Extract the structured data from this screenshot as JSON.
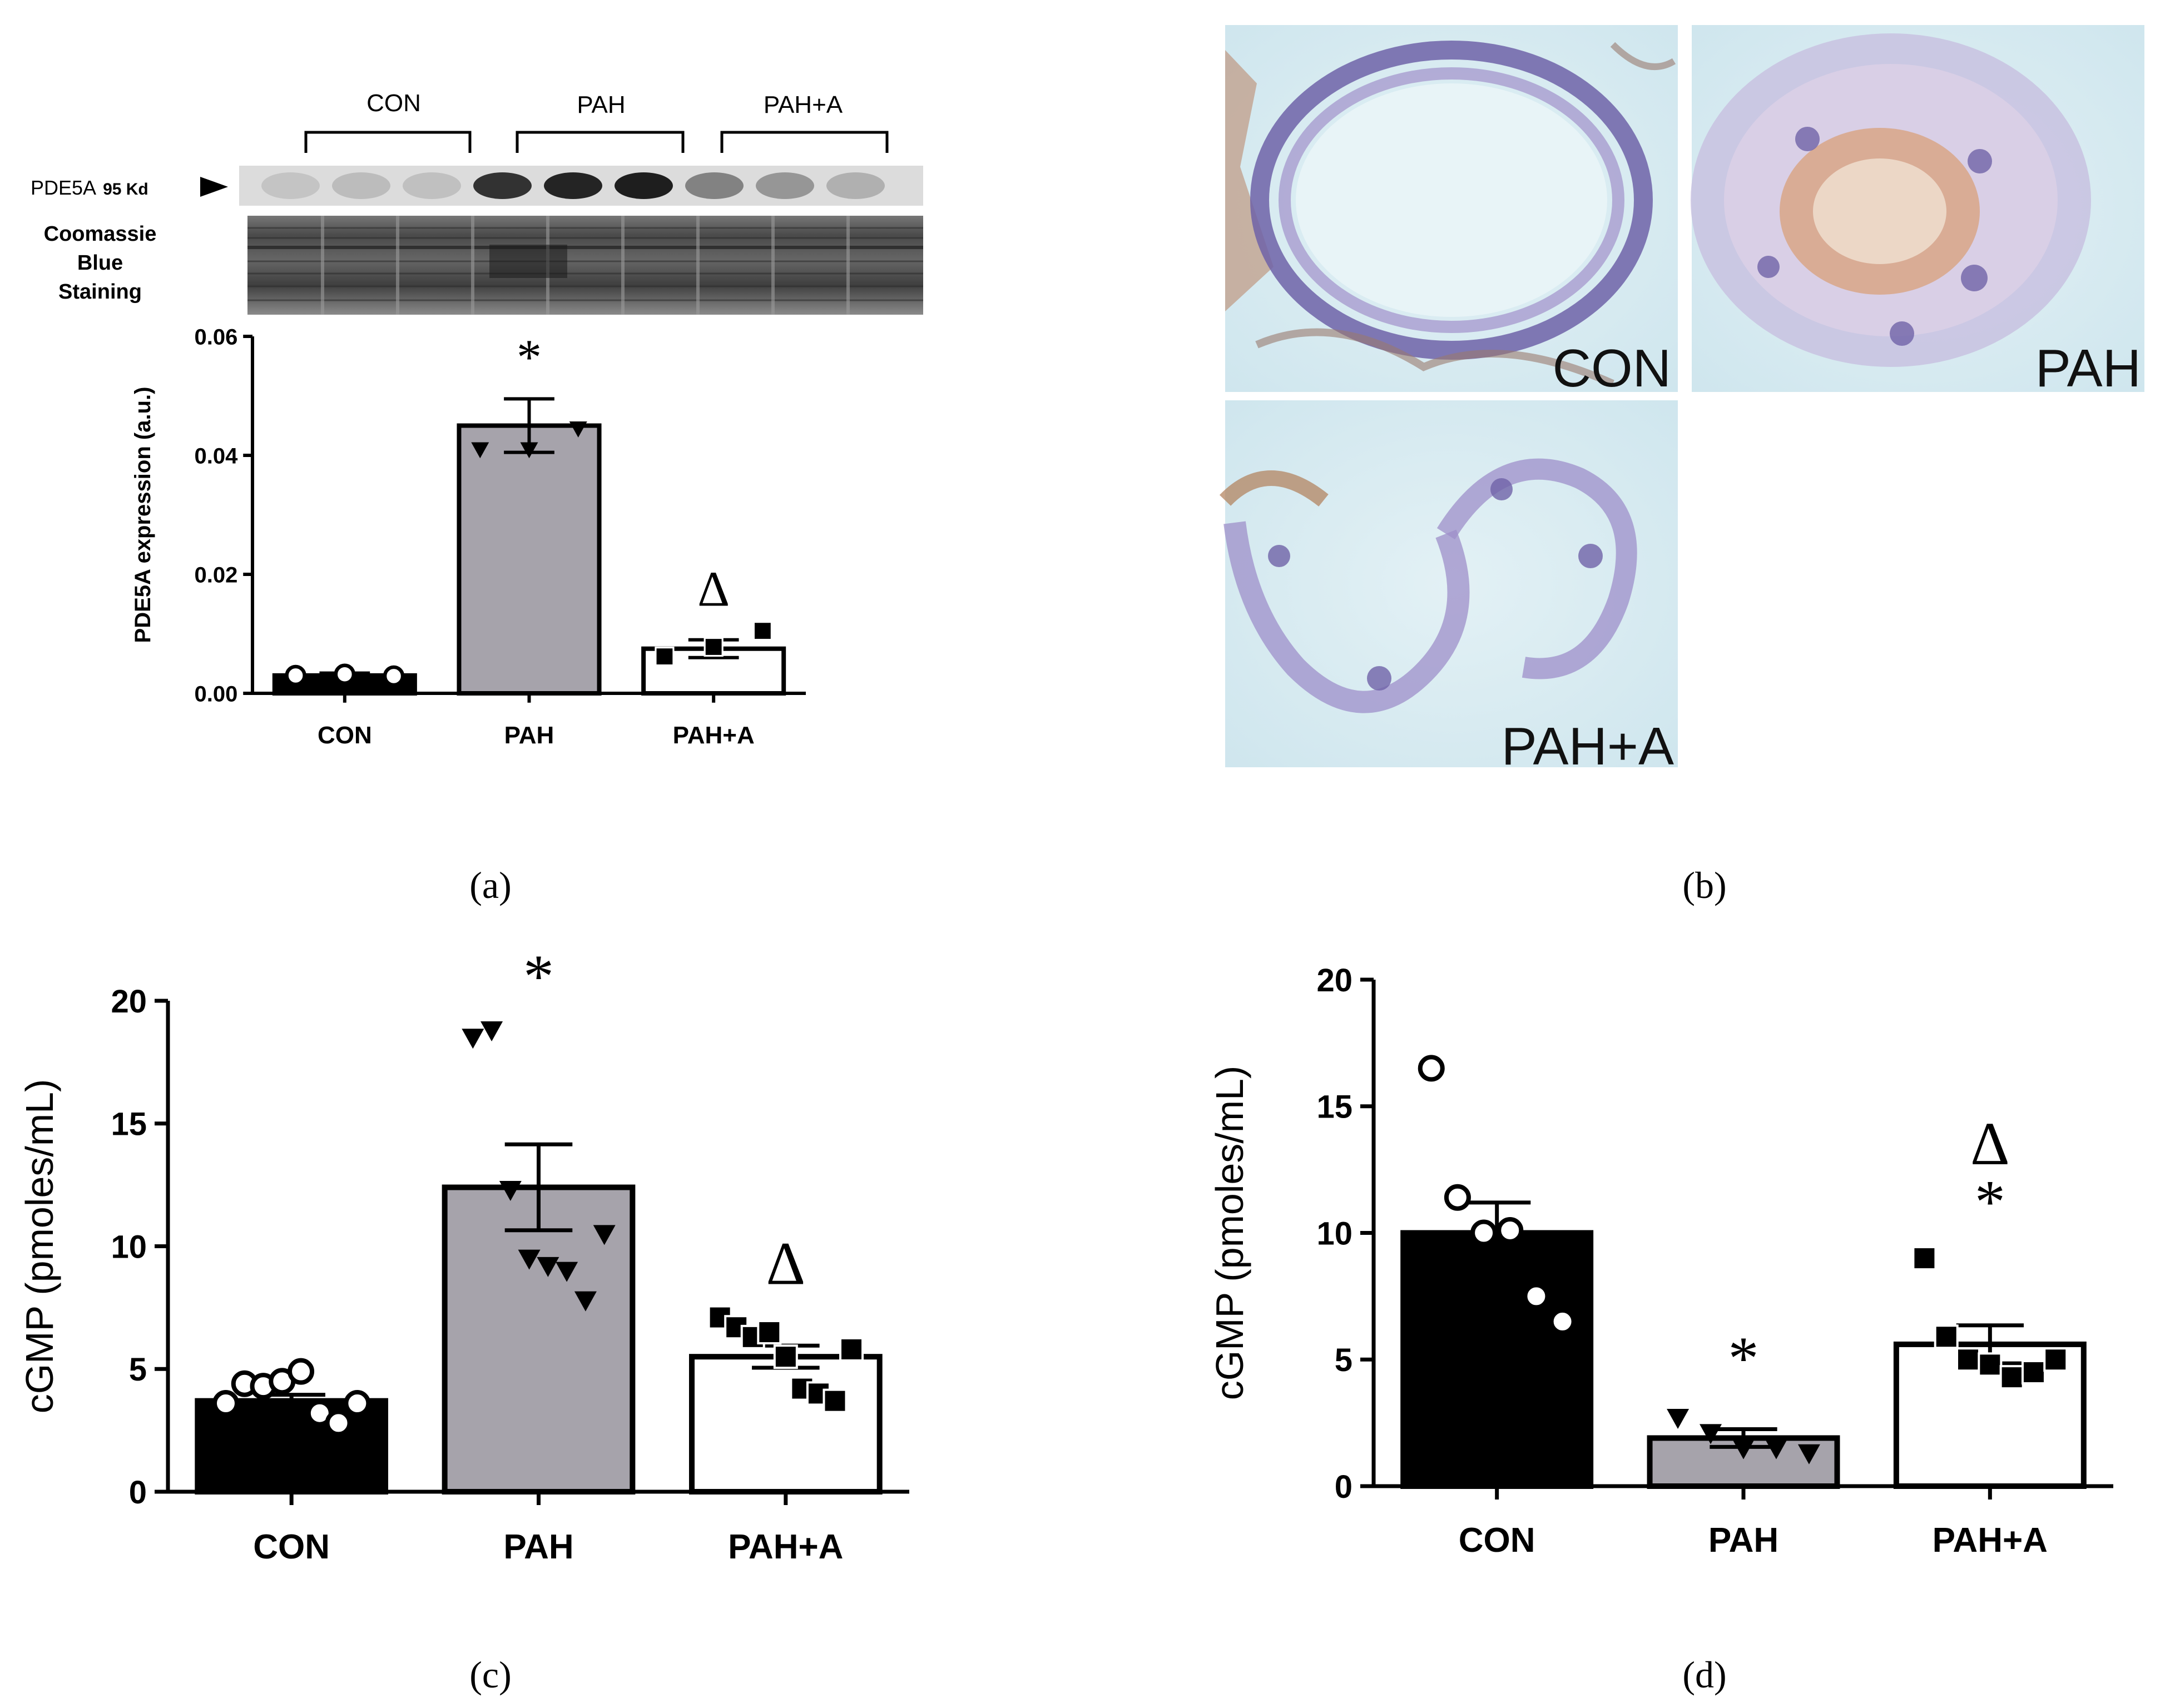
{
  "panel_labels": [
    "(a)",
    "(b)",
    "(c)",
    "(d)"
  ],
  "western_blot": {
    "group_labels": [
      "CON",
      "PAH",
      "PAH+A"
    ],
    "band_label": "PDE5A",
    "band_size": "95 Kd",
    "loading_label_lines": [
      "Coomassie",
      "Blue",
      "Staining"
    ],
    "band_intensity": [
      0.12,
      0.16,
      0.14,
      0.85,
      0.92,
      0.95,
      0.45,
      0.35,
      0.22
    ]
  },
  "histology": {
    "labels": [
      "CON",
      "PAH",
      "PAH+A"
    ]
  },
  "chart_data": [
    {
      "panel": "(a)",
      "type": "bar",
      "categories": [
        "CON",
        "PAH",
        "PAH+A"
      ],
      "values": [
        0.003,
        0.045,
        0.0075
      ],
      "errors": [
        0.0004,
        0.0045,
        0.0015
      ],
      "points": [
        [
          0.003,
          0.0032,
          0.0029
        ],
        [
          0.041,
          0.041,
          0.0445
        ],
        [
          0.0062,
          0.0078,
          0.0105
        ]
      ],
      "markers": [
        "circle",
        "triangle-down",
        "square"
      ],
      "colors": [
        "#000000",
        "#a6a3ab",
        "#ffffff"
      ],
      "annotations": [
        "",
        "*",
        "Δ"
      ],
      "ylabel": "PDE5A expression (a.u.)",
      "xlabel": "",
      "ylim": [
        0,
        0.06
      ],
      "yticks": [
        0.0,
        0.02,
        0.04,
        0.06
      ],
      "ytick_labels": [
        "0.00",
        "0.02",
        "0.04",
        "0.06"
      ],
      "grid": false
    },
    {
      "panel": "(c)",
      "type": "bar",
      "categories": [
        "CON",
        "PAH",
        "PAH+A"
      ],
      "values": [
        3.7,
        12.4,
        5.5
      ],
      "errors": [
        0.25,
        1.75,
        0.45
      ],
      "points": [
        [
          3.6,
          4.4,
          4.3,
          4.5,
          4.9,
          3.2,
          2.8,
          3.6
        ],
        [
          18.5,
          18.8,
          12.3,
          9.5,
          9.2,
          9.0,
          7.8,
          10.5
        ],
        [
          7.1,
          6.7,
          6.3,
          6.5,
          5.5,
          4.2,
          4.0,
          3.7,
          5.8
        ]
      ],
      "markers": [
        "circle",
        "triangle-down",
        "square"
      ],
      "colors": [
        "#000000",
        "#a6a3ab",
        "#ffffff"
      ],
      "annotations": [
        "",
        "*",
        "Δ"
      ],
      "ylabel": "cGMP (pmoles/mL)",
      "xlabel": "",
      "ylim": [
        0,
        20
      ],
      "yticks": [
        0,
        5,
        10,
        15,
        20
      ],
      "ytick_labels": [
        "0",
        "5",
        "10",
        "15",
        "20"
      ],
      "grid": false
    },
    {
      "panel": "(d)",
      "type": "bar",
      "categories": [
        "CON",
        "PAH",
        "PAH+A"
      ],
      "values": [
        10.0,
        1.9,
        5.6
      ],
      "errors": [
        1.2,
        0.35,
        0.75
      ],
      "points": [
        [
          16.5,
          11.4,
          10.0,
          10.1,
          7.5,
          6.5
        ],
        [
          2.7,
          2.1,
          1.5,
          1.5,
          1.3
        ],
        [
          9.0,
          5.9,
          5.0,
          4.8,
          4.3,
          4.5,
          5.0
        ]
      ],
      "markers": [
        "circle",
        "triangle-down",
        "square"
      ],
      "colors": [
        "#000000",
        "#a6a3ab",
        "#ffffff"
      ],
      "annotations": [
        "",
        "*",
        "Δ*"
      ],
      "ylabel": "cGMP (pmoles/mL)",
      "xlabel": "",
      "ylim": [
        0,
        20
      ],
      "yticks": [
        0,
        5,
        10,
        15,
        20
      ],
      "ytick_labels": [
        "0",
        "5",
        "10",
        "15",
        "20"
      ],
      "grid": false
    }
  ]
}
